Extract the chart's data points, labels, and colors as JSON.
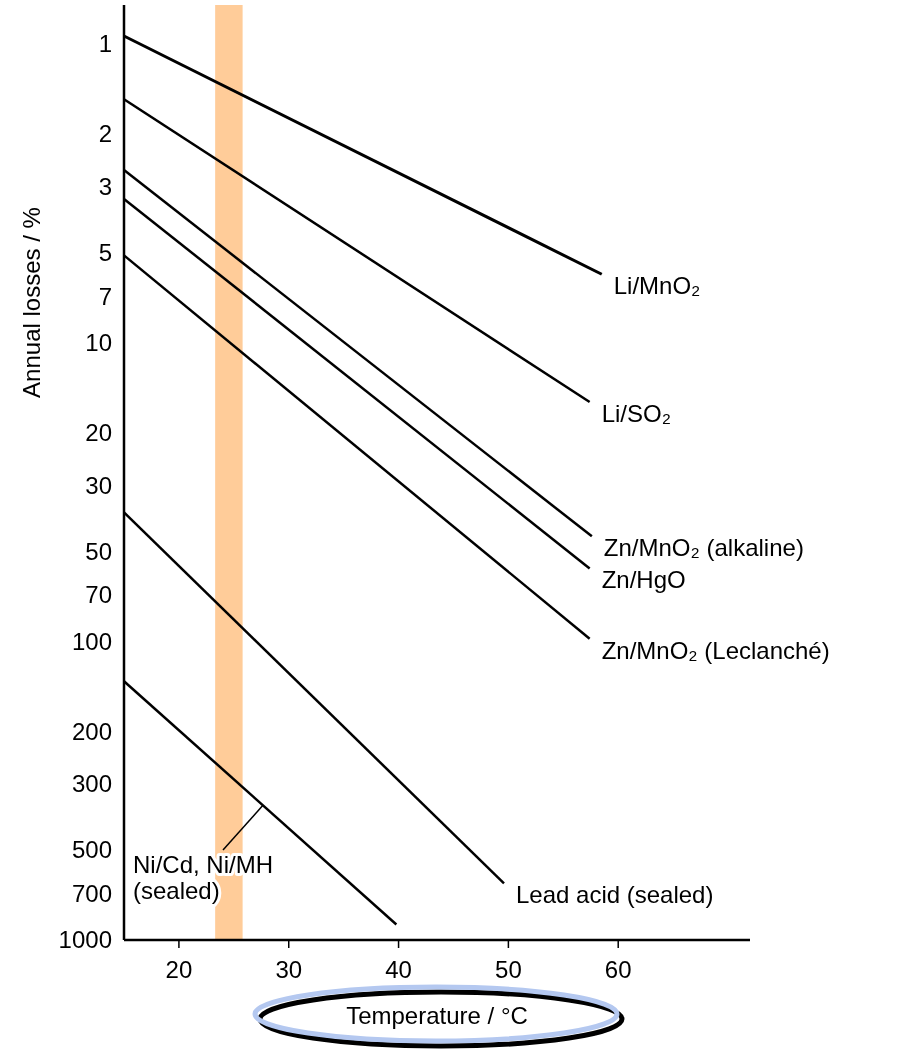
{
  "chart_data": {
    "type": "line",
    "xlabel": "Temperature / °C",
    "ylabel": "Annual losses / %",
    "log": "y",
    "grid": false,
    "line_style": "solid",
    "xlim": [
      15,
      72
    ],
    "xticks": [
      20,
      30,
      40,
      50,
      60
    ],
    "ylim": [
      1000,
      0.74
    ],
    "yticks": [
      1,
      2,
      3,
      5,
      7,
      10,
      20,
      30,
      50,
      70,
      100,
      200,
      300,
      500,
      700,
      1000
    ],
    "bands": [
      {
        "axis": "x",
        "from": 23.3,
        "to": 25.8,
        "color": "#ffcc99"
      }
    ],
    "series": [
      {
        "name": "Li/MnO₂",
        "color": "#000000",
        "x": [
          15,
          58.5
        ],
        "values": [
          0.94,
          5.9
        ]
      },
      {
        "name": "Li/SO₂",
        "color": "#000000",
        "x": [
          15,
          57.4
        ],
        "values": [
          1.53,
          15.8
        ]
      },
      {
        "name": "Zn/MnO₂ (alkaline)",
        "color": "#000000",
        "x": [
          15,
          57.6
        ],
        "values": [
          2.64,
          44.5
        ]
      },
      {
        "name": "Zn/HgO",
        "color": "#000000",
        "x": [
          15,
          57.4
        ],
        "values": [
          3.3,
          57
        ]
      },
      {
        "name": "Zn/MnO₂ (Leclanché)",
        "color": "#000000",
        "x": [
          15,
          57.4
        ],
        "values": [
          5.1,
          98
        ]
      },
      {
        "name": "Lead acid (sealed)",
        "color": "#000000",
        "x": [
          15,
          49.6
        ],
        "values": [
          37,
          646
        ]
      },
      {
        "name": "Ni/Cd, Ni/MH\n(sealed)",
        "color": "#000000",
        "x": [
          15,
          39.8
        ],
        "values": [
          136,
          887
        ]
      }
    ]
  }
}
